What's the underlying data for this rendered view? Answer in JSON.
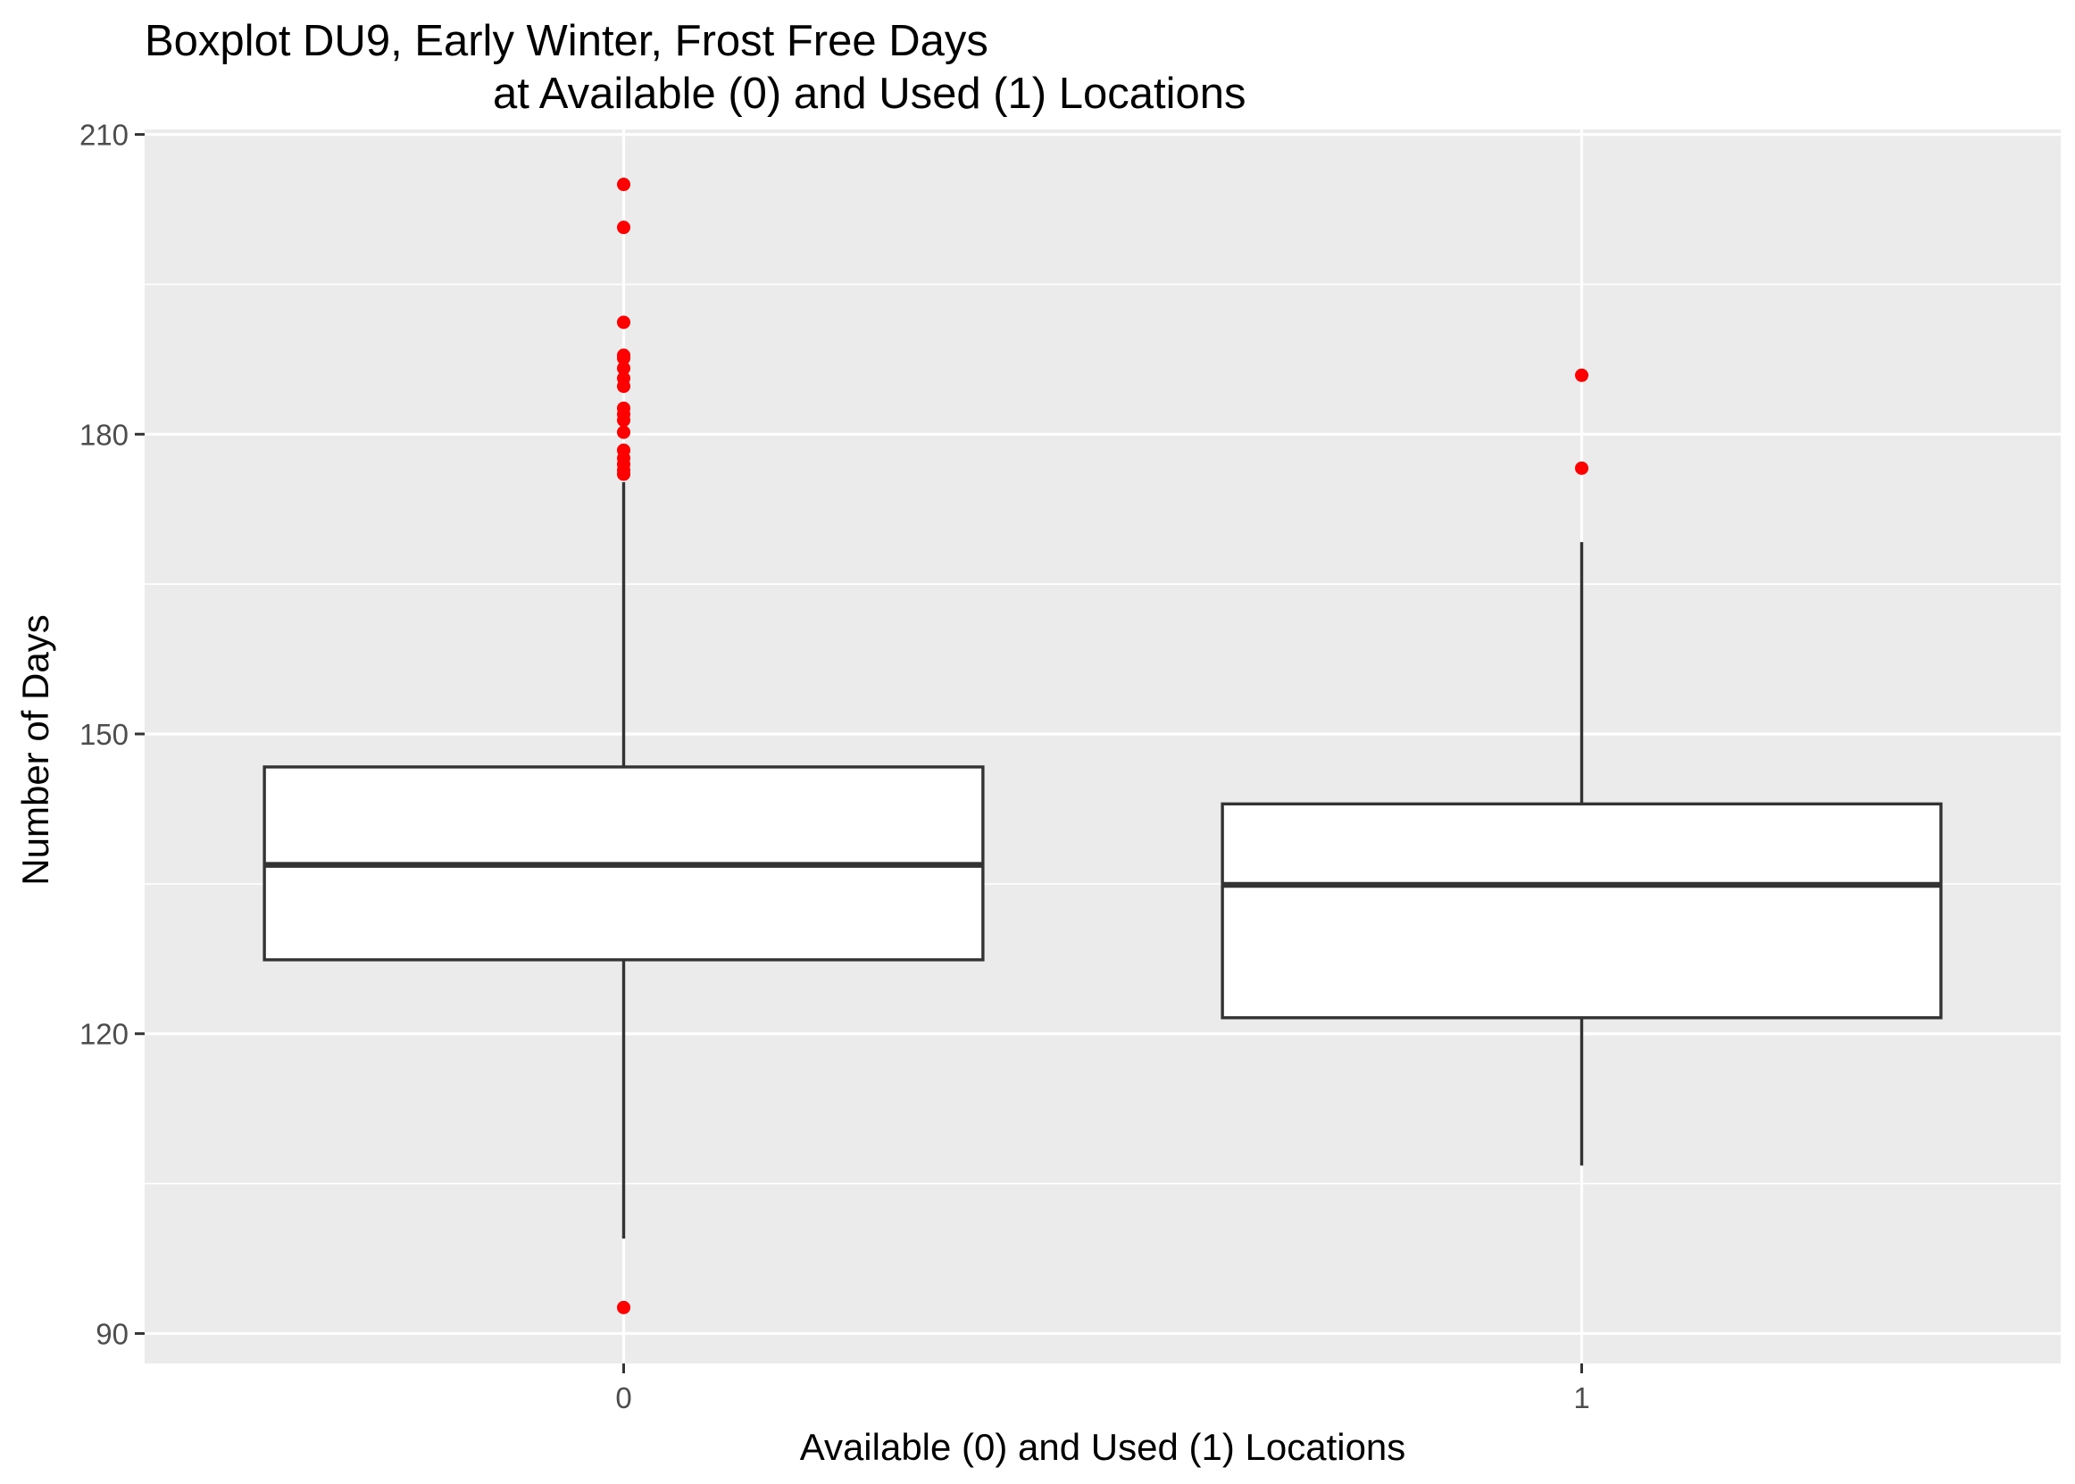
{
  "chart_data": {
    "type": "boxplot",
    "title_line1": "Boxplot DU9, Early Winter, Frost Free Days",
    "title_line2": "at Available (0) and Used (1) Locations",
    "xlabel": "Available (0) and Used (1) Locations",
    "ylabel": "Number of Days",
    "categories": [
      "0",
      "1"
    ],
    "ylim": [
      87,
      210.5
    ],
    "yticks": [
      90,
      120,
      150,
      180,
      210
    ],
    "ytick_labels": [
      "90",
      "120",
      "150",
      "180",
      "210"
    ],
    "grid": true,
    "boxes": [
      {
        "category": "0",
        "lower_whisker": 99.5,
        "q1": 127.4,
        "median": 136.9,
        "q3": 146.7,
        "upper_whisker": 175.2,
        "outliers": [
          92.6,
          176.0,
          176.4,
          177.0,
          177.6,
          178.4,
          180.2,
          181.4,
          182.0,
          182.6,
          184.8,
          185.6,
          186.6,
          187.6,
          187.9,
          191.2,
          200.7,
          205.0
        ]
      },
      {
        "category": "1",
        "lower_whisker": 106.8,
        "q1": 121.6,
        "median": 134.9,
        "q3": 143.0,
        "upper_whisker": 169.2,
        "outliers": [
          176.6,
          185.9
        ]
      }
    ],
    "colors": {
      "panel_background": "#ebebeb",
      "gridline": "#ffffff",
      "box_fill": "#ffffff",
      "box_line": "#333333",
      "outlier": "#ff0000",
      "tick_label": "#4d4d4d",
      "tick_mark": "#333333"
    }
  }
}
